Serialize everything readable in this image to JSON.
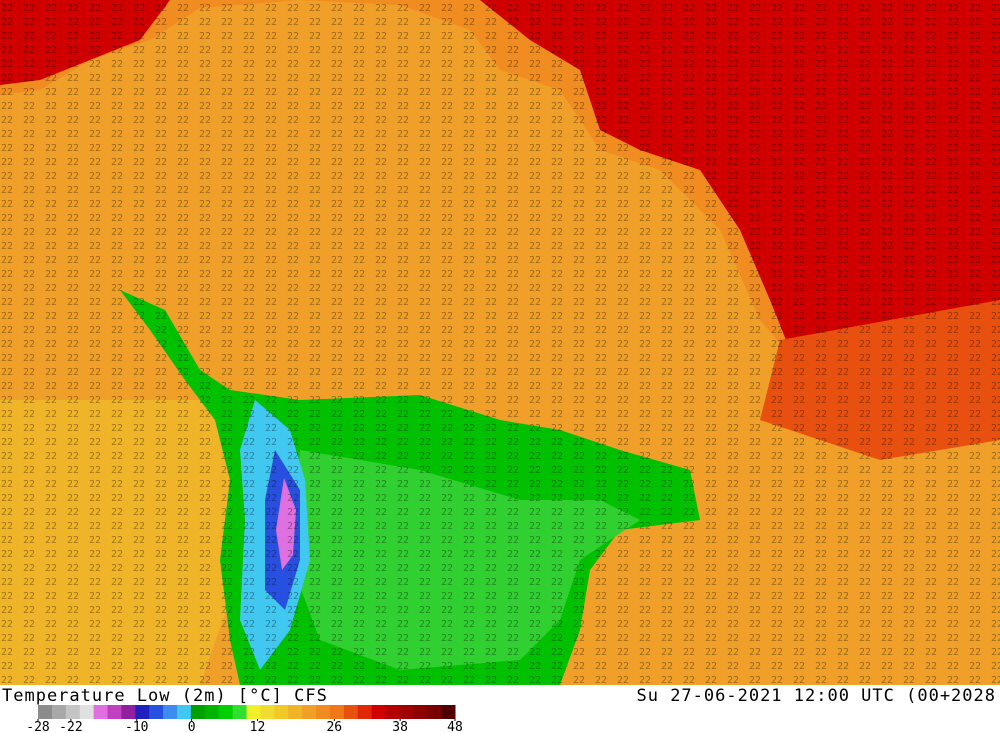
{
  "map": {
    "title": "Temperature Low (2m) [°C] CFS",
    "timestamp": "Su 27-06-2021 12:00 UTC (00+2028",
    "colorbar": {
      "range": [
        -28,
        48
      ],
      "ticks": [
        -28,
        -22,
        -10,
        0,
        12,
        26,
        38,
        48
      ],
      "colors": [
        "#8c8c8c",
        "#a8a8a8",
        "#c4c4c4",
        "#e0e0e0",
        "#e070e0",
        "#c040c0",
        "#9020a0",
        "#2020c0",
        "#2850e0",
        "#3c8cf0",
        "#40c8f0",
        "#00a000",
        "#00b400",
        "#00d000",
        "#30e030",
        "#f0f028",
        "#f0dc30",
        "#f0c828",
        "#f0b428",
        "#f0a028",
        "#f08c20",
        "#f07818",
        "#e85010",
        "#e02808",
        "#d00000",
        "#b40000",
        "#a00000",
        "#8c0000",
        "#780000",
        "#500000"
      ]
    }
  }
}
